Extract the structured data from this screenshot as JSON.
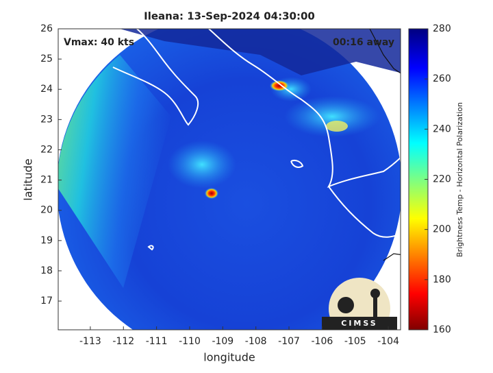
{
  "chart_data": {
    "type": "image",
    "title": "Ileana: 13-Sep-2024 04:30:00",
    "annotations": [
      "Vmax: 40 kts",
      "00:16 away"
    ],
    "xlabel": "longitude",
    "ylabel": "latitude",
    "xlim": [
      -113.97,
      -103.63
    ],
    "xticks": [
      -113,
      -112,
      -111,
      -110,
      -109,
      -108,
      -107,
      -106,
      -105,
      -104
    ],
    "ylim": [
      16.05,
      26
    ],
    "yticks": [
      17,
      18,
      19,
      20,
      21,
      22,
      23,
      24,
      25,
      26
    ],
    "colorbar_label": "Brightness Temp - Horizontal Polarization",
    "clim": [
      160,
      280
    ],
    "cticks": [
      160,
      180,
      200,
      220,
      240,
      260,
      280
    ],
    "logo_text": "CIMSS"
  }
}
